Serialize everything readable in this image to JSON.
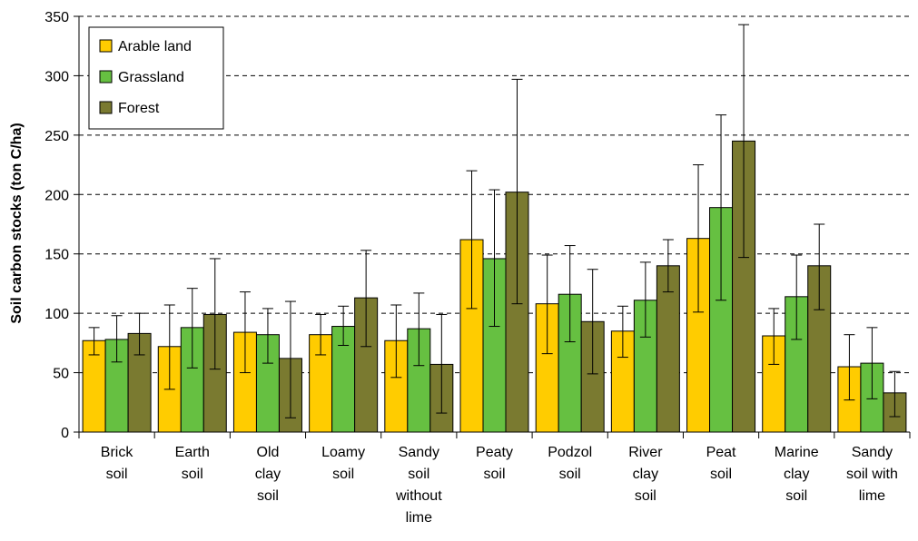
{
  "chart_data": {
    "type": "bar",
    "title": "",
    "xlabel": "",
    "ylabel": "Soil carbon stocks (ton C/ha)",
    "ylim": [
      0,
      350
    ],
    "yticks": [
      0,
      50,
      100,
      150,
      200,
      250,
      300,
      350
    ],
    "grid": "horizontal dashed",
    "legend_position": "top-left",
    "categories": [
      [
        "Brick",
        "soil"
      ],
      [
        "Earth",
        "soil"
      ],
      [
        "Old",
        "clay",
        "soil"
      ],
      [
        "Loamy",
        "soil"
      ],
      [
        "Sandy",
        "soil",
        "without",
        "lime"
      ],
      [
        "Peaty",
        "soil"
      ],
      [
        "Podzol",
        "soil"
      ],
      [
        "River",
        "clay",
        "soil"
      ],
      [
        "Peat",
        "soil"
      ],
      [
        "Marine",
        "clay",
        "soil"
      ],
      [
        "Sandy",
        "soil with",
        "lime"
      ]
    ],
    "series": [
      {
        "name": "Arable land",
        "color": "#FFCC00",
        "values": [
          77,
          72,
          84,
          82,
          77,
          162,
          108,
          85,
          163,
          81,
          55
        ],
        "err_low": [
          65,
          36,
          50,
          65,
          46,
          104,
          66,
          63,
          101,
          57,
          27
        ],
        "err_high": [
          88,
          107,
          118,
          99,
          107,
          220,
          149,
          106,
          225,
          104,
          82
        ]
      },
      {
        "name": "Grassland",
        "color": "#66C041",
        "values": [
          78,
          88,
          82,
          89,
          87,
          146,
          116,
          111,
          189,
          114,
          58
        ],
        "err_low": [
          59,
          54,
          58,
          73,
          56,
          89,
          76,
          80,
          111,
          78,
          28
        ],
        "err_high": [
          98,
          121,
          104,
          106,
          117,
          204,
          157,
          143,
          267,
          149,
          88
        ]
      },
      {
        "name": "Forest",
        "color": "#7A7A30",
        "values": [
          83,
          99,
          62,
          113,
          57,
          202,
          93,
          140,
          245,
          140,
          33
        ],
        "err_low": [
          65,
          53,
          12,
          72,
          16,
          108,
          49,
          118,
          147,
          103,
          13
        ],
        "err_high": [
          100,
          146,
          110,
          153,
          99,
          297,
          137,
          162,
          343,
          175,
          51
        ]
      }
    ]
  }
}
